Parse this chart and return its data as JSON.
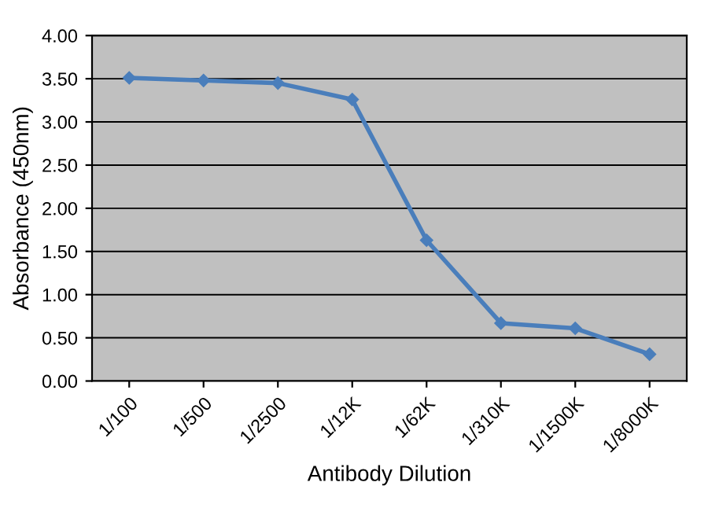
{
  "chart_data": {
    "type": "line",
    "xlabel": "Antibody Dilution",
    "ylabel": "Absorbance (450nm)",
    "categories": [
      "1/100",
      "1/500",
      "1/2500",
      "1/12K",
      "1/62K",
      "1/310K",
      "1/1500K",
      "1/8000K"
    ],
    "series": [
      {
        "color": "#4a7ebb",
        "values": [
          3.51,
          3.48,
          3.45,
          3.26,
          1.63,
          0.67,
          0.61,
          0.31
        ]
      }
    ],
    "ylim": [
      0,
      4
    ],
    "yticks": [
      {
        "value": 0,
        "label": "0.00"
      },
      {
        "value": 0.5,
        "label": "0.50"
      },
      {
        "value": 1,
        "label": "1.00"
      },
      {
        "value": 1.5,
        "label": "1.50"
      },
      {
        "value": 2,
        "label": "2.00"
      },
      {
        "value": 2.5,
        "label": "2.50"
      },
      {
        "value": 3,
        "label": "3.00"
      },
      {
        "value": 3.5,
        "label": "3.50"
      },
      {
        "value": 4,
        "label": "4.00"
      }
    ],
    "grid": "y",
    "marker": "diamond",
    "line_style": "solid"
  }
}
